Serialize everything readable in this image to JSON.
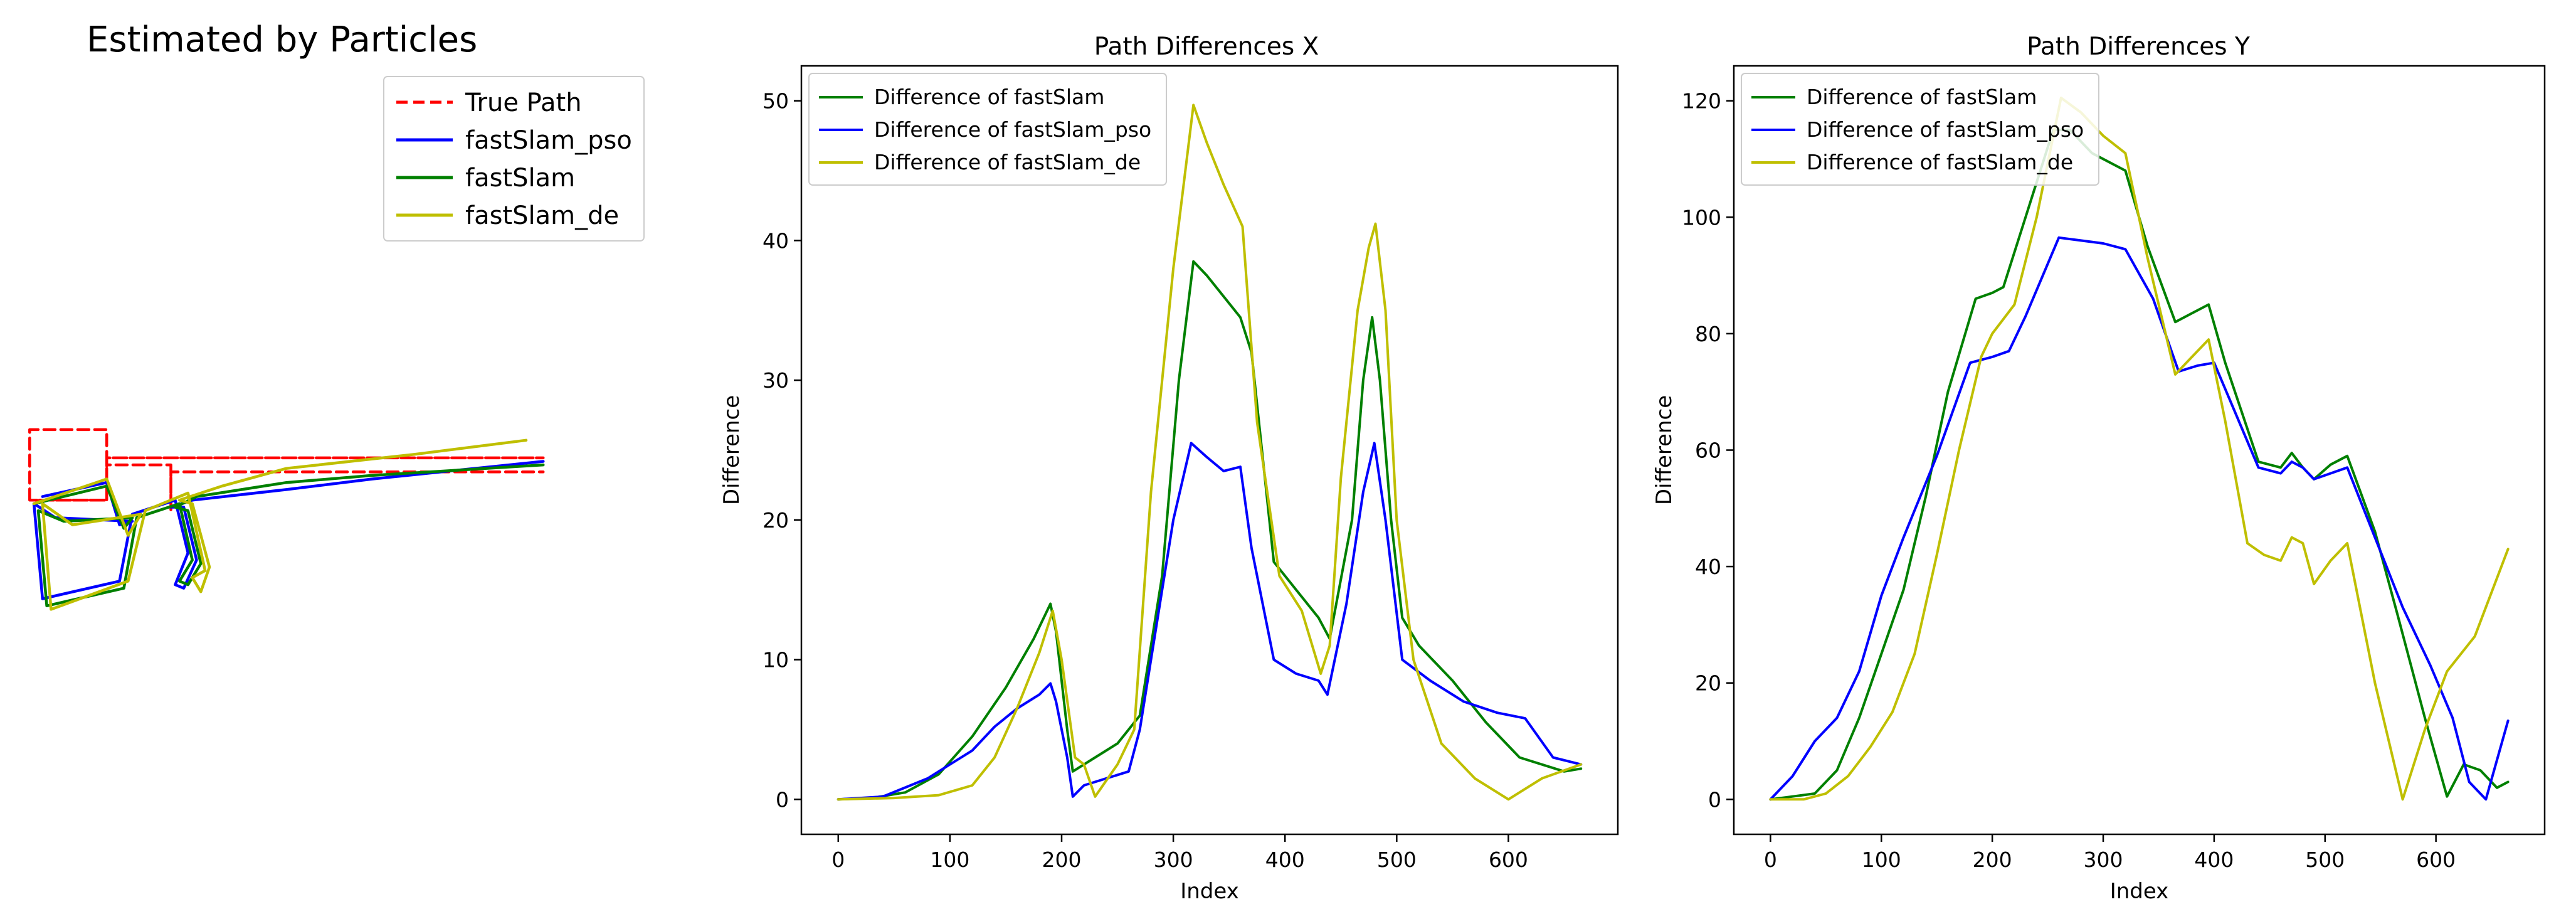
{
  "colors": {
    "true_path": "#ff0000",
    "pso": "#0000ff",
    "fastslam": "#008000",
    "de": "#bfbf00"
  },
  "chart_data": [
    {
      "type": "line",
      "title": "Estimated by Particles",
      "axes": "off",
      "legend_position": "top-right",
      "legend": [
        "True Path",
        "fastSlam_pso",
        "fastSlam",
        "fastSlam_de"
      ],
      "xlim": [
        -4,
        122
      ],
      "ylim": [
        -35,
        38
      ],
      "series": [
        {
          "name": "True Path",
          "style": "dashed",
          "color_key": "true_path",
          "x": [
            0,
            0,
            18,
            18,
            0,
            18,
            18,
            120,
            18,
            18,
            33,
            33,
            33,
            33,
            120
          ],
          "y": [
            10,
            30,
            30,
            10,
            10,
            10,
            22,
            22,
            22,
            20,
            20,
            7,
            7,
            18,
            18
          ]
        },
        {
          "name": "fastSlam_pso",
          "color_key": "pso",
          "x": [
            3,
            18,
            21,
            24,
            6,
            1,
            3,
            21,
            24,
            34,
            37,
            34,
            36,
            39,
            36,
            33,
            38,
            60,
            80,
            120
          ],
          "y": [
            11,
            15,
            3,
            4,
            5,
            9,
            -18,
            -13,
            6,
            10,
            -5,
            -14,
            -15,
            -7,
            8,
            8,
            10,
            13,
            16,
            21
          ]
        },
        {
          "name": "fastSlam",
          "color_key": "fastslam",
          "x": [
            1,
            18,
            22,
            24,
            8,
            2,
            4,
            22,
            25,
            35,
            38,
            35,
            37,
            40,
            37,
            34,
            39,
            60,
            80,
            120
          ],
          "y": [
            9,
            14,
            2,
            5,
            4,
            7,
            -20,
            -15,
            5,
            9,
            -7,
            -13,
            -14,
            -8,
            7,
            8,
            11,
            15,
            17,
            20
          ]
        },
        {
          "name": "fastSlam_de",
          "color_key": "de",
          "x": [
            1,
            18,
            23,
            26,
            10,
            3,
            5,
            23,
            27,
            37,
            41,
            38,
            40,
            42,
            38,
            35,
            45,
            60,
            90,
            116
          ],
          "y": [
            9,
            16,
            0,
            6,
            3,
            9,
            -21,
            -13,
            7,
            12,
            -10,
            -12,
            -16,
            -9,
            9,
            10,
            14,
            19,
            23,
            27
          ]
        }
      ]
    },
    {
      "type": "line",
      "title": "Path Differences X",
      "xlabel": "Index",
      "ylabel": "Difference",
      "xlim": [
        -33,
        698
      ],
      "ylim": [
        -2.5,
        52.5
      ],
      "xticks": [
        0,
        100,
        200,
        300,
        400,
        500,
        600
      ],
      "yticks": [
        0,
        10,
        20,
        30,
        40,
        50
      ],
      "legend_position": "top-left",
      "series": [
        {
          "name": "Difference of fastSlam",
          "color_key": "fastslam",
          "x": [
            0,
            30,
            60,
            90,
            120,
            150,
            175,
            190,
            195,
            205,
            210,
            230,
            250,
            270,
            290,
            305,
            318,
            330,
            350,
            360,
            370,
            390,
            410,
            430,
            440,
            460,
            470,
            478,
            485,
            495,
            505,
            520,
            550,
            580,
            610,
            650,
            665
          ],
          "y": [
            0,
            0.1,
            0.5,
            1.8,
            4.5,
            8,
            11.5,
            14,
            12,
            5,
            2,
            3,
            4,
            6,
            16,
            30,
            38.5,
            37.5,
            35.5,
            34.5,
            32,
            17,
            15,
            13,
            11.5,
            20,
            30,
            34.5,
            30,
            20,
            13,
            11,
            8.5,
            5.5,
            3,
            2,
            2.2
          ]
        },
        {
          "name": "Difference of fastSlam_pso",
          "color_key": "pso",
          "x": [
            0,
            40,
            80,
            100,
            120,
            140,
            160,
            180,
            190,
            195,
            205,
            210,
            220,
            240,
            260,
            270,
            280,
            300,
            316,
            330,
            345,
            360,
            370,
            390,
            410,
            430,
            438,
            455,
            470,
            480,
            490,
            505,
            530,
            560,
            590,
            615,
            640,
            665
          ],
          "y": [
            0,
            0.2,
            1.5,
            2.5,
            3.5,
            5.2,
            6.5,
            7.5,
            8.3,
            7,
            3,
            0.2,
            1,
            1.5,
            2,
            5,
            10,
            20,
            25.5,
            24.5,
            23.5,
            23.8,
            18,
            10,
            9,
            8.5,
            7.5,
            14,
            22,
            25.5,
            20,
            10,
            8.5,
            7,
            6.2,
            5.8,
            3,
            2.5
          ]
        },
        {
          "name": "Difference of fastSlam_de",
          "color_key": "de",
          "x": [
            0,
            50,
            90,
            120,
            140,
            160,
            180,
            192,
            200,
            212,
            220,
            230,
            250,
            265,
            280,
            300,
            318,
            330,
            345,
            362,
            375,
            395,
            415,
            432,
            440,
            450,
            465,
            475,
            481,
            490,
            500,
            515,
            540,
            570,
            600,
            630,
            665
          ],
          "y": [
            0,
            0.1,
            0.3,
            1,
            3,
            6.5,
            10.5,
            13.5,
            10,
            3,
            2.5,
            0.2,
            2.5,
            5,
            22,
            38,
            49.7,
            47,
            44,
            41,
            27,
            16,
            13.5,
            9,
            11,
            23,
            35,
            39.5,
            41.2,
            35,
            20,
            10,
            4,
            1.5,
            0,
            1.5,
            2.5
          ]
        }
      ]
    },
    {
      "type": "line",
      "title": "Path Differences Y",
      "xlabel": "Index",
      "ylabel": "Difference",
      "xlim": [
        -33,
        698
      ],
      "ylim": [
        -6,
        126
      ],
      "xticks": [
        0,
        100,
        200,
        300,
        400,
        500,
        600
      ],
      "yticks": [
        0,
        20,
        40,
        60,
        80,
        100,
        120
      ],
      "legend_position": "top-left",
      "series": [
        {
          "name": "Difference of fastSlam",
          "color_key": "fastslam",
          "x": [
            0,
            20,
            40,
            60,
            80,
            100,
            120,
            140,
            160,
            185,
            200,
            210,
            230,
            255,
            270,
            290,
            320,
            340,
            365,
            380,
            395,
            410,
            440,
            460,
            470,
            480,
            490,
            505,
            520,
            545,
            565,
            590,
            610,
            625,
            640,
            655,
            665
          ],
          "y": [
            0,
            0.5,
            1,
            5,
            14,
            25,
            36,
            52,
            70,
            86,
            87,
            88,
            100,
            115,
            115,
            111,
            108,
            95,
            82,
            83.5,
            85,
            75,
            58,
            57,
            59.5,
            57,
            55,
            57.5,
            59,
            46,
            32,
            14,
            0.5,
            6,
            5,
            2,
            3
          ]
        },
        {
          "name": "Difference of fastSlam_pso",
          "color_key": "pso",
          "x": [
            0,
            20,
            40,
            60,
            80,
            100,
            120,
            150,
            180,
            200,
            215,
            230,
            260,
            280,
            300,
            320,
            345,
            368,
            385,
            400,
            420,
            440,
            460,
            470,
            480,
            490,
            505,
            520,
            545,
            570,
            595,
            615,
            630,
            645,
            665
          ],
          "y": [
            0,
            4,
            10,
            14,
            22,
            35,
            45,
            59,
            75,
            76,
            77,
            83,
            96.5,
            96,
            95.5,
            94.5,
            86,
            73.5,
            74.5,
            75,
            66,
            57,
            56,
            58,
            57,
            55,
            56,
            57,
            45,
            33,
            23,
            14,
            3,
            0,
            13.5
          ]
        },
        {
          "name": "Difference of fastSlam_de",
          "color_key": "de",
          "x": [
            0,
            30,
            50,
            70,
            90,
            110,
            130,
            150,
            170,
            190,
            200,
            220,
            240,
            262,
            280,
            300,
            320,
            340,
            365,
            380,
            395,
            410,
            430,
            445,
            460,
            470,
            480,
            490,
            505,
            520,
            545,
            570,
            590,
            610,
            635,
            665
          ],
          "y": [
            0,
            0,
            1,
            4,
            9,
            15,
            25,
            42,
            60,
            76,
            80,
            85,
            100,
            120.5,
            118,
            114,
            111,
            93,
            73,
            76,
            79,
            65,
            44,
            42,
            41,
            45,
            44,
            37,
            41,
            44,
            20,
            0,
            12,
            22,
            28,
            43
          ]
        }
      ]
    }
  ]
}
